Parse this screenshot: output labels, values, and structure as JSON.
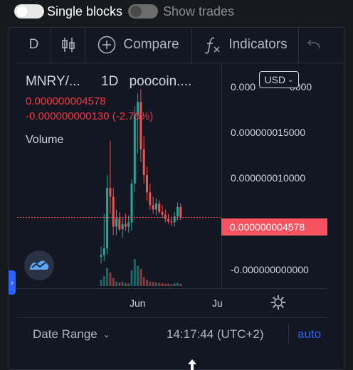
{
  "topbar": {
    "toggle_single_blocks": "Single blocks",
    "toggle_show_trades": "Show trades"
  },
  "toolbar": {
    "interval": "D",
    "compare_label": "Compare",
    "indicators_label": "Indicators"
  },
  "legend": {
    "symbol": "MNRY/...",
    "interval": "1D",
    "source": "poocoin....",
    "last_price": "0.000000004578",
    "change": "-0.000000000130 (-2.76%)",
    "volume_label": "Volume"
  },
  "price_scale": {
    "currency": "USD",
    "ticks": [
      "0.000000020000",
      "0.000000015000",
      "0.000000010000",
      "-0.000000000000"
    ],
    "top_tick_visible": "0.000",
    "top_tick_tail": "0000",
    "current_price_tag": "0.000000004578"
  },
  "time_scale": {
    "labels": [
      "Jun",
      "Ju"
    ]
  },
  "bottom_bar": {
    "date_range_label": "Date Range",
    "time": "14:17:44 (UTC+2)",
    "auto_label": "auto"
  },
  "colors": {
    "up": "#26a69a",
    "down": "#ef5350",
    "accent": "#2962ff",
    "price_line": "#f7525f"
  },
  "chart_data": {
    "type": "candlestick",
    "title": "MNRY/... 1D poocoin....",
    "ylabel": "USD",
    "ylim": [
      -1.5e-09,
      2.25e-08
    ],
    "last": 4.578e-09,
    "candles": [
      {
        "o": 0.0,
        "h": 1.2e-09,
        "l": -8e-10,
        "c": 2e-10
      },
      {
        "o": 2e-10,
        "h": 5e-09,
        "l": -5e-10,
        "c": 1e-09
      },
      {
        "o": 1e-09,
        "h": 9.5e-09,
        "l": 3e-10,
        "c": 8e-09
      },
      {
        "o": 8e-09,
        "h": 1.35e-08,
        "l": 5e-09,
        "c": 7e-09
      },
      {
        "o": 7e-09,
        "h": 8e-09,
        "l": 2.5e-09,
        "c": 3.5e-09
      },
      {
        "o": 3.5e-09,
        "h": 5.5e-09,
        "l": 2.5e-09,
        "c": 4.5e-09
      },
      {
        "o": 4.5e-09,
        "h": 5.2e-09,
        "l": 3e-09,
        "c": 3.2e-09
      },
      {
        "o": 3.2e-09,
        "h": 4.5e-09,
        "l": 2.2e-09,
        "c": 3.8e-09
      },
      {
        "o": 3.8e-09,
        "h": 5e-09,
        "l": 3e-09,
        "c": 3.5e-09
      },
      {
        "o": 3.5e-09,
        "h": 4.8e-09,
        "l": 2.8e-09,
        "c": 4e-09
      },
      {
        "o": 4e-09,
        "h": 9e-09,
        "l": 3e-09,
        "c": 8.5e-09
      },
      {
        "o": 8.5e-09,
        "h": 1.75e-08,
        "l": 7.5e-09,
        "c": 1.65e-08
      },
      {
        "o": 1.65e-08,
        "h": 1.9e-08,
        "l": 1.2e-08,
        "c": 1.8e-08
      },
      {
        "o": 1.8e-08,
        "h": 1.95e-08,
        "l": 1.1e-08,
        "c": 1.25e-08
      },
      {
        "o": 1.25e-08,
        "h": 1.4e-08,
        "l": 8.5e-09,
        "c": 9.5e-09
      },
      {
        "o": 9.5e-09,
        "h": 1.05e-08,
        "l": 6.5e-09,
        "c": 7.5e-09
      },
      {
        "o": 7.5e-09,
        "h": 8.5e-09,
        "l": 5.5e-09,
        "c": 6e-09
      },
      {
        "o": 6e-09,
        "h": 7e-09,
        "l": 5e-09,
        "c": 5.5e-09
      },
      {
        "o": 5.5e-09,
        "h": 6.8e-09,
        "l": 4.8e-09,
        "c": 6.2e-09
      },
      {
        "o": 6.2e-09,
        "h": 6.6e-09,
        "l": 5e-09,
        "c": 5.2e-09
      },
      {
        "o": 5.2e-09,
        "h": 6e-09,
        "l": 4.5e-09,
        "c": 4.9e-09
      },
      {
        "o": 4.9e-09,
        "h": 5.5e-09,
        "l": 4e-09,
        "c": 4.4e-09
      },
      {
        "o": 4.4e-09,
        "h": 5e-09,
        "l": 3.8e-09,
        "c": 4.1e-09
      },
      {
        "o": 4.1e-09,
        "h": 4.6e-09,
        "l": 3.6e-09,
        "c": 4e-09
      },
      {
        "o": 4e-09,
        "h": 5.2e-09,
        "l": 3.5e-09,
        "c": 4.7e-09
      },
      {
        "o": 4.7e-09,
        "h": 6.3e-09,
        "l": 4.2e-09,
        "c": 5.8e-09
      },
      {
        "o": 5.8e-09,
        "h": 6.2e-09,
        "l": 4.3e-09,
        "c": 4.6e-09
      }
    ],
    "volume": [
      14,
      22,
      40,
      30,
      18,
      10,
      8,
      9,
      7,
      6,
      35,
      60,
      45,
      38,
      20,
      14,
      10,
      9,
      8,
      7,
      6,
      5,
      5,
      4,
      6,
      7,
      5
    ]
  }
}
